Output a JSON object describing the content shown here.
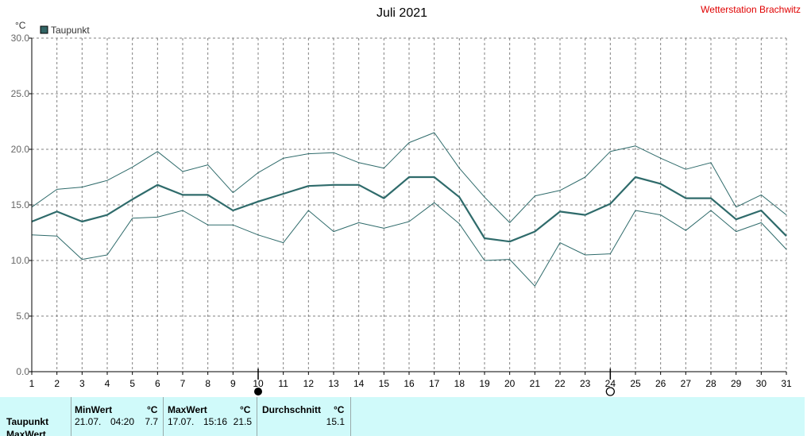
{
  "chart_data": {
    "type": "line",
    "title": "Juli 2021",
    "source": "Wetterstation Brachwitz",
    "y_unit": "°C",
    "ylim": [
      0,
      30
    ],
    "y_ticks": [
      "0.0",
      "5.0",
      "10.0",
      "15.0",
      "20.0",
      "25.0",
      "30.0"
    ],
    "x": [
      1,
      2,
      3,
      4,
      5,
      6,
      7,
      8,
      9,
      10,
      11,
      12,
      13,
      14,
      15,
      16,
      17,
      18,
      19,
      20,
      21,
      22,
      23,
      24,
      25,
      26,
      27,
      28,
      29,
      30,
      31
    ],
    "x_tick_labels": [
      "1",
      "2",
      "3",
      "4",
      "5",
      "6",
      "7",
      "8",
      "9",
      "10",
      "11",
      "12",
      "13",
      "14",
      "15",
      "16",
      "17",
      "18",
      "19",
      "20",
      "21",
      "22",
      "23",
      "24",
      "25",
      "26",
      "27",
      "28",
      "29",
      "30",
      "31"
    ],
    "legend": {
      "label": "Taupunkt",
      "position": "top-left"
    },
    "grid": true,
    "series": [
      {
        "name": "Taupunkt",
        "role": "mean",
        "values": [
          13.5,
          14.4,
          13.5,
          14.1,
          15.5,
          16.8,
          15.9,
          15.9,
          14.5,
          15.3,
          16.0,
          16.7,
          16.8,
          16.8,
          15.6,
          17.5,
          17.5,
          15.7,
          12.0,
          11.7,
          12.6,
          14.4,
          14.1,
          15.1,
          17.5,
          16.9,
          15.6,
          15.6,
          13.7,
          14.5,
          12.2
        ]
      },
      {
        "role": "max",
        "values": [
          14.8,
          16.4,
          16.6,
          17.2,
          18.4,
          19.8,
          18.0,
          18.6,
          16.1,
          17.9,
          19.2,
          19.6,
          19.7,
          18.8,
          18.3,
          20.6,
          21.5,
          18.3,
          15.7,
          13.4,
          15.8,
          16.3,
          17.5,
          19.8,
          20.3,
          19.2,
          18.2,
          18.8,
          14.8,
          15.9,
          14.1
        ]
      },
      {
        "role": "min",
        "values": [
          12.3,
          12.2,
          10.1,
          10.5,
          13.8,
          13.9,
          14.5,
          13.2,
          13.2,
          12.3,
          11.6,
          14.5,
          12.6,
          13.4,
          12.9,
          13.5,
          15.2,
          13.3,
          10.0,
          10.1,
          7.7,
          11.6,
          10.5,
          10.6,
          14.5,
          14.1,
          12.7,
          14.5,
          12.6,
          13.4,
          11.0
        ]
      }
    ],
    "moon_markers": [
      {
        "day": 10,
        "phase": "new-moon",
        "symbol": "●"
      },
      {
        "day": 24,
        "phase": "full-moon",
        "symbol": "○"
      }
    ],
    "colors": {
      "line": "#2f6b6b",
      "legend_box": "#336666",
      "station": "#e00000",
      "stats_bg": "#d0fafa"
    }
  },
  "stats": {
    "row_label": "Taupunkt",
    "row_label_2": "MaxWert",
    "min": {
      "header": "MinWert",
      "unit": "°C",
      "date": "21.07.",
      "time": "04:20",
      "value": "7.7"
    },
    "max": {
      "header": "MaxWert",
      "unit": "°C",
      "date": "17.07.",
      "time": "15:16",
      "value": "21.5"
    },
    "avg": {
      "header": "Durchschnitt",
      "unit": "°C",
      "value": "15.1"
    }
  }
}
